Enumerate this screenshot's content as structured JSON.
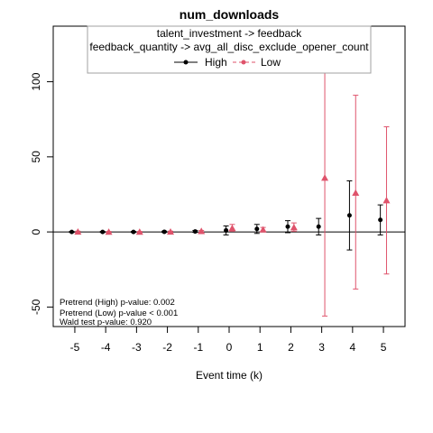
{
  "chart_data": {
    "type": "scatter",
    "title": "num_downloads",
    "subtitle_lines": [
      "talent_investment -> feedback",
      "feedback_quantity -> avg_all_disc_exclude_opener_count"
    ],
    "xlabel": "Event time (k)",
    "ylabel": "",
    "x_ticks": [
      -5,
      -4,
      -3,
      -2,
      -1,
      0,
      1,
      2,
      3,
      4,
      5
    ],
    "y_ticks": [
      -50,
      0,
      50,
      100
    ],
    "xlim": [
      -5.7,
      5.7
    ],
    "ylim": [
      -63,
      137
    ],
    "reference_line_y": 0,
    "colors": {
      "High": "#000000",
      "Low": "#DF536B"
    },
    "legend": {
      "placement": "top",
      "entries": [
        "High",
        "Low"
      ]
    },
    "series": [
      {
        "name": "High",
        "color": "#000000",
        "marker": "circle",
        "x": [
          -5,
          -4,
          -3,
          -2,
          -1,
          0,
          1,
          2,
          3,
          4,
          5
        ],
        "y": [
          0.0,
          0.0,
          0.0,
          0.1,
          0.3,
          1.0,
          2.0,
          3.5,
          3.5,
          11.0,
          8.0
        ],
        "lower": [
          -0.3,
          -0.3,
          -0.3,
          -0.3,
          -0.3,
          -2.0,
          -1.0,
          -0.5,
          -2.0,
          -12.0,
          -2.0
        ],
        "upper": [
          0.3,
          0.3,
          0.3,
          0.5,
          1.0,
          4.0,
          5.0,
          7.5,
          9.0,
          34.0,
          18.0
        ]
      },
      {
        "name": "Low",
        "color": "#DF536B",
        "marker": "triangle",
        "x": [
          -5,
          -4,
          -3,
          -2,
          -1,
          0,
          1,
          2,
          3,
          4,
          5
        ],
        "y": [
          0.1,
          0.0,
          0.0,
          0.1,
          0.5,
          2.5,
          1.5,
          3.0,
          36.0,
          26.0,
          21.0
        ],
        "lower": [
          -0.3,
          -0.3,
          -0.3,
          -0.3,
          -0.3,
          0.5,
          0.5,
          0.5,
          -56.0,
          -38.0,
          -28.0
        ],
        "upper": [
          0.5,
          0.3,
          0.3,
          0.5,
          1.0,
          5.0,
          3.0,
          6.0,
          108.0,
          91.0,
          70.0
        ]
      }
    ],
    "annotations": [
      "Pretrend (High) p-value: 0.002",
      "Pretrend (Low) p-value < 0.001",
      "Wald test p-value: 0.920"
    ]
  }
}
